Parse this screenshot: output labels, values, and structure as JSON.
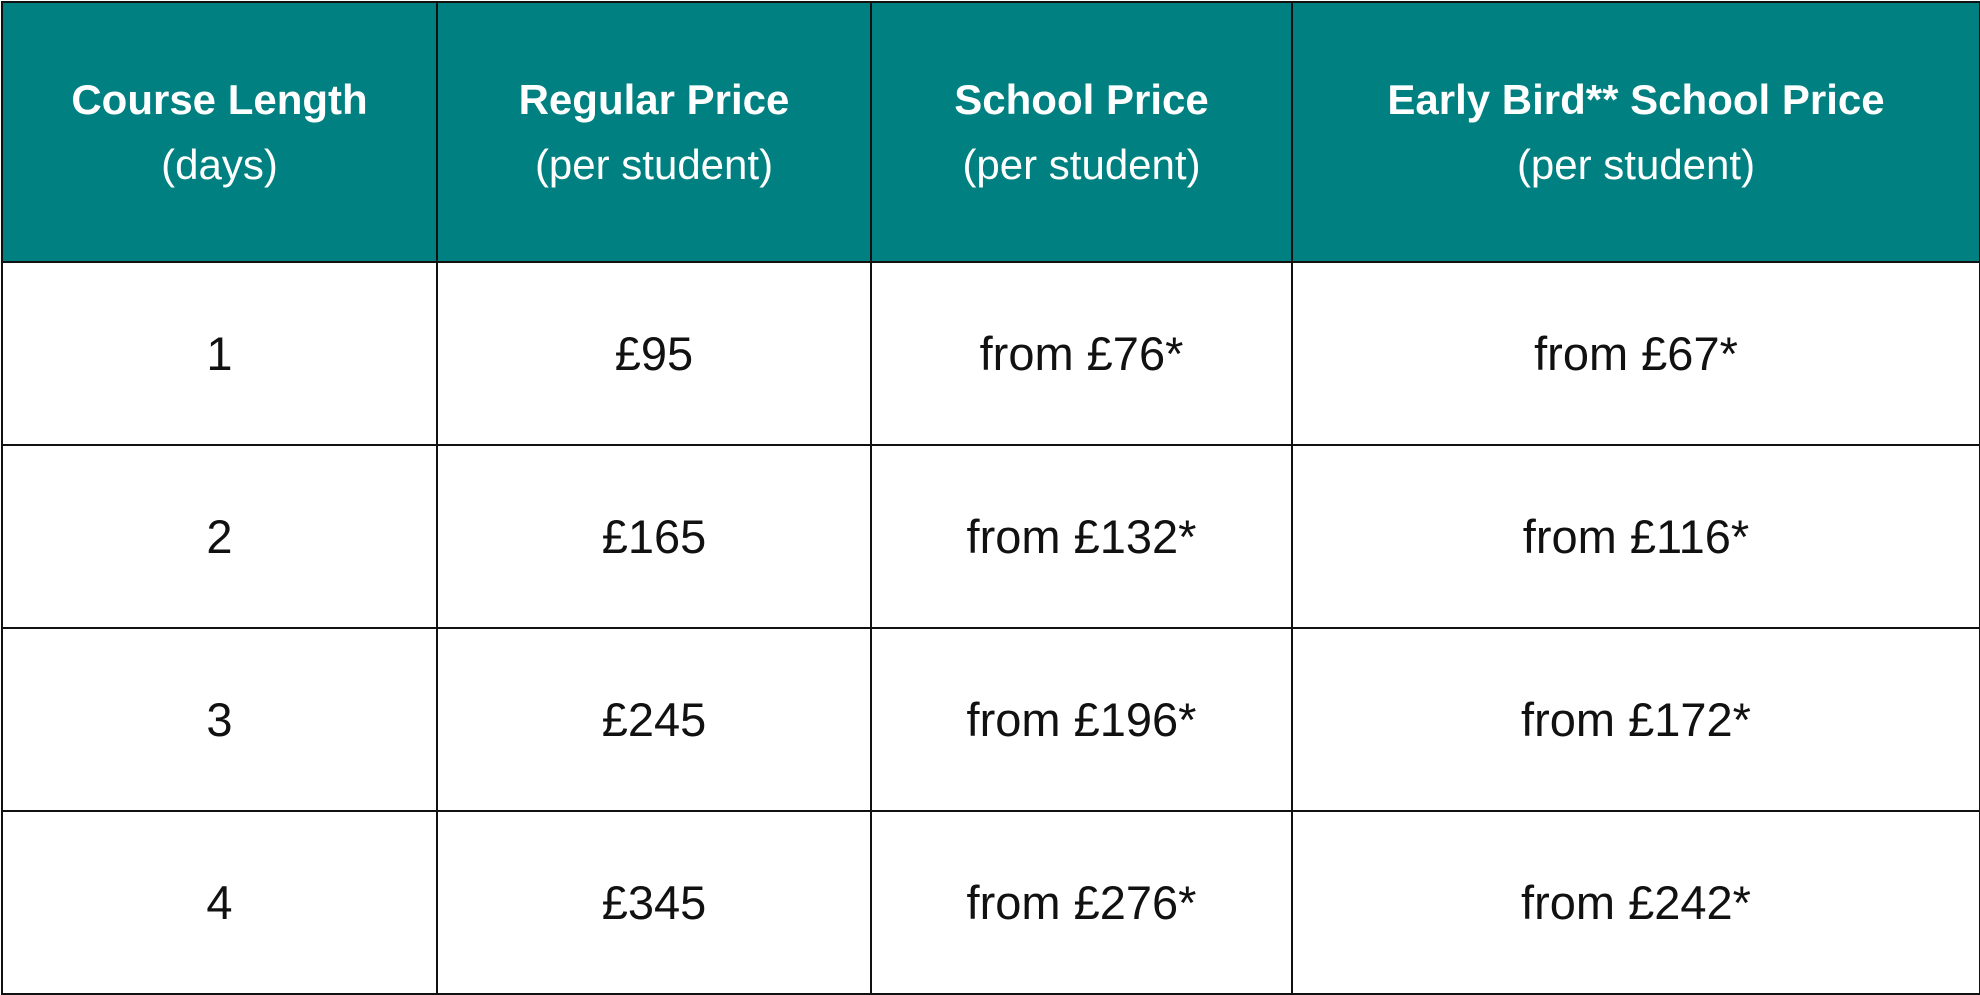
{
  "colors": {
    "header_bg": "#008080",
    "header_text": "#ffffff",
    "border": "#111111"
  },
  "table": {
    "headers": [
      {
        "title": "Course Length",
        "subtitle": "(days)"
      },
      {
        "title": "Regular Price",
        "subtitle": "(per student)"
      },
      {
        "title": "School Price",
        "subtitle": "(per student)"
      },
      {
        "title": "Early Bird** School Price",
        "subtitle": "(per student)"
      }
    ],
    "rows": [
      [
        "1",
        "£95",
        "from £76*",
        "from £67*"
      ],
      [
        "2",
        "£165",
        "from £132*",
        "from £116*"
      ],
      [
        "3",
        "£245",
        "from £196*",
        "from £172*"
      ],
      [
        "4",
        "£345",
        "from £276*",
        "from £242*"
      ]
    ]
  }
}
